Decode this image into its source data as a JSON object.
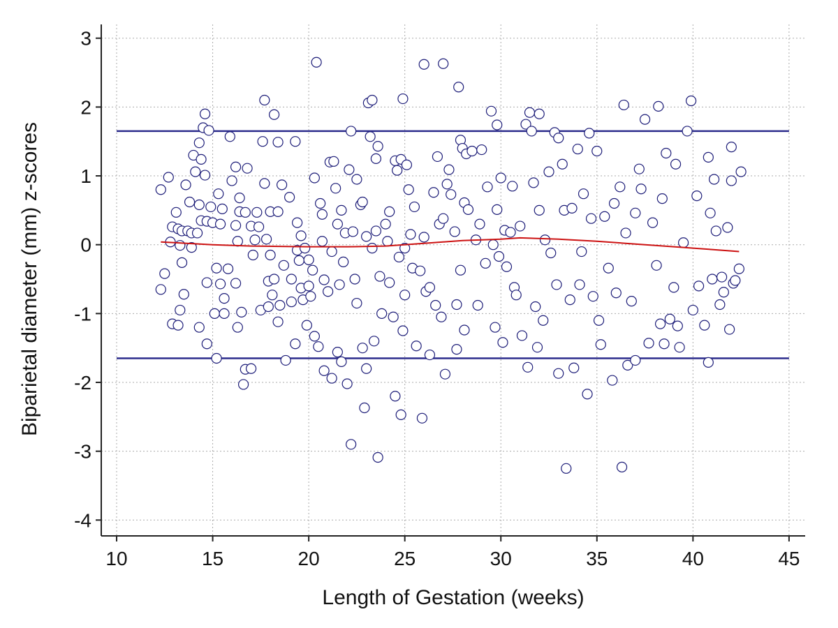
{
  "chart_data": {
    "type": "scatter",
    "xlabel": "Length of Gestation (weeks)",
    "ylabel": "Biparietal diameter (mm) z-scores",
    "xlim": [
      9.2,
      45.84
    ],
    "ylim": [
      -4.23,
      3.2
    ],
    "xticks": [
      10,
      15,
      20,
      25,
      30,
      35,
      40,
      45
    ],
    "yticks": [
      -4,
      -3,
      -2,
      -1,
      0,
      1,
      2,
      3
    ],
    "grid": true,
    "color": "#1c1c78",
    "x": [
      12.3,
      12.3,
      12.5,
      12.7,
      12.8,
      12.9,
      12.9,
      13.1,
      13.2,
      13.2,
      13.3,
      13.3,
      13.4,
      13.4,
      13.5,
      13.6,
      13.7,
      13.8,
      13.9,
      13.9,
      14.0,
      14.1,
      14.2,
      14.3,
      14.3,
      14.3,
      14.4,
      14.4,
      14.5,
      14.6,
      14.6,
      14.7,
      14.7,
      14.7,
      14.8,
      14.9,
      15.0,
      15.1,
      15.2,
      15.2,
      15.3,
      15.4,
      15.4,
      15.5,
      15.6,
      15.6,
      15.8,
      15.9,
      16.0,
      16.2,
      16.2,
      16.2,
      16.3,
      16.3,
      16.4,
      16.4,
      16.5,
      16.6,
      16.7,
      16.7,
      16.8,
      17.0,
      17.0,
      17.1,
      17.2,
      17.3,
      17.4,
      17.5,
      17.6,
      17.7,
      17.7,
      17.8,
      17.9,
      17.9,
      18.0,
      18.0,
      18.1,
      18.2,
      18.2,
      18.4,
      18.4,
      18.4,
      18.5,
      18.6,
      18.7,
      18.8,
      19.0,
      19.1,
      19.1,
      19.3,
      19.3,
      19.4,
      19.4,
      19.5,
      19.6,
      19.6,
      19.7,
      19.8,
      19.9,
      20.0,
      20.0,
      20.1,
      20.2,
      20.3,
      20.3,
      20.4,
      20.5,
      20.6,
      20.7,
      20.7,
      20.8,
      20.8,
      21.0,
      21.1,
      21.2,
      21.2,
      21.3,
      21.4,
      21.5,
      21.5,
      21.6,
      21.7,
      21.7,
      21.8,
      21.9,
      22.0,
      22.1,
      22.2,
      22.2,
      22.3,
      22.4,
      22.5,
      22.5,
      22.7,
      22.8,
      22.8,
      22.9,
      23.0,
      23.0,
      23.1,
      23.2,
      23.3,
      23.3,
      23.4,
      23.5,
      23.5,
      23.6,
      23.6,
      23.7,
      23.8,
      24.0,
      24.1,
      24.2,
      24.2,
      24.4,
      24.5,
      24.5,
      24.6,
      24.7,
      24.8,
      24.8,
      24.9,
      24.9,
      25.0,
      25.0,
      25.1,
      25.2,
      25.3,
      25.4,
      25.5,
      25.6,
      25.8,
      25.9,
      26.0,
      26.0,
      26.1,
      26.3,
      26.3,
      26.5,
      26.6,
      26.7,
      26.8,
      26.9,
      27.0,
      27.0,
      27.1,
      27.2,
      27.3,
      27.4,
      27.6,
      27.7,
      27.7,
      27.8,
      27.9,
      27.9,
      28.0,
      28.1,
      28.1,
      28.2,
      28.3,
      28.5,
      28.7,
      28.8,
      28.9,
      29.0,
      29.2,
      29.3,
      29.5,
      29.6,
      29.7,
      29.8,
      29.8,
      29.9,
      30.0,
      30.1,
      30.2,
      30.3,
      30.5,
      30.6,
      30.7,
      30.8,
      31.0,
      31.1,
      31.3,
      31.4,
      31.5,
      31.6,
      31.7,
      31.8,
      31.9,
      32.0,
      32.0,
      32.2,
      32.3,
      32.5,
      32.6,
      32.8,
      32.9,
      33.0,
      33.0,
      33.2,
      33.3,
      33.4,
      33.6,
      33.7,
      33.8,
      34.0,
      34.1,
      34.2,
      34.3,
      34.5,
      34.6,
      34.7,
      34.8,
      35.0,
      35.1,
      35.2,
      35.4,
      35.6,
      35.8,
      35.9,
      36.0,
      36.2,
      36.3,
      36.4,
      36.5,
      36.6,
      36.8,
      37.0,
      37.0,
      37.2,
      37.3,
      37.5,
      37.7,
      37.9,
      38.1,
      38.2,
      38.3,
      38.4,
      38.5,
      38.6,
      38.8,
      39.0,
      39.1,
      39.2,
      39.3,
      39.5,
      39.7,
      39.9,
      40.0,
      40.2,
      40.3,
      40.6,
      40.8,
      40.8,
      40.9,
      41.0,
      41.1,
      41.2,
      41.4,
      41.5,
      41.6,
      41.8,
      41.9,
      42.0,
      42.0,
      42.1,
      42.2,
      42.4,
      42.5
    ],
    "values": [
      0.8,
      -0.65,
      -0.42,
      0.98,
      0.04,
      0.26,
      -1.15,
      0.47,
      0.23,
      -1.17,
      -0.01,
      -0.95,
      0.2,
      -0.26,
      -0.72,
      0.87,
      0.2,
      0.62,
      0.17,
      -0.04,
      1.3,
      1.06,
      0.17,
      1.48,
      0.58,
      -1.2,
      1.24,
      0.35,
      1.7,
      1.9,
      1.01,
      0.34,
      -0.55,
      -1.44,
      1.66,
      0.55,
      0.32,
      -1.0,
      -1.65,
      -0.34,
      0.74,
      0.3,
      -0.57,
      0.52,
      -1.0,
      -0.78,
      -0.35,
      1.57,
      0.93,
      1.13,
      0.28,
      -0.56,
      -1.2,
      0.05,
      0.68,
      0.48,
      -0.98,
      -2.03,
      0.47,
      -1.81,
      1.11,
      -1.8,
      0.27,
      -0.15,
      0.07,
      0.47,
      0.26,
      -0.95,
      1.5,
      2.1,
      0.89,
      0.08,
      -0.53,
      -0.9,
      0.48,
      -0.15,
      -0.73,
      1.89,
      -0.5,
      1.49,
      0.48,
      -1.12,
      -0.88,
      0.87,
      -0.3,
      -1.68,
      0.69,
      -0.5,
      -0.83,
      -1.44,
      1.5,
      0.32,
      -0.08,
      -0.23,
      -0.63,
      0.13,
      -0.8,
      -0.05,
      -1.17,
      -0.22,
      -0.6,
      -0.75,
      -0.37,
      0.97,
      -1.33,
      2.65,
      -1.48,
      0.6,
      0.44,
      0.05,
      -1.83,
      -0.51,
      -0.68,
      1.2,
      -0.1,
      -1.94,
      1.21,
      0.82,
      0.3,
      -1.56,
      -0.58,
      0.5,
      -1.7,
      -0.25,
      0.17,
      -2.02,
      1.09,
      -2.9,
      1.65,
      0.19,
      -0.5,
      0.95,
      -0.85,
      0.58,
      -1.5,
      0.62,
      -2.37,
      0.12,
      -1.8,
      2.06,
      1.57,
      2.1,
      -0.05,
      -1.4,
      1.25,
      0.2,
      -3.09,
      1.43,
      -0.46,
      -1.0,
      0.3,
      0.05,
      0.48,
      -0.55,
      -1.05,
      1.22,
      -2.2,
      1.08,
      -0.18,
      -2.47,
      1.24,
      2.12,
      -1.25,
      -0.05,
      -0.73,
      1.16,
      0.8,
      0.15,
      -0.34,
      0.55,
      -1.47,
      -0.38,
      -2.52,
      2.62,
      0.11,
      -0.68,
      -1.6,
      -0.62,
      0.76,
      -0.88,
      1.28,
      0.3,
      -1.05,
      2.63,
      0.38,
      -1.88,
      0.88,
      1.09,
      0.73,
      0.19,
      -1.52,
      -0.87,
      2.29,
      1.52,
      -0.37,
      1.4,
      -1.24,
      0.61,
      1.32,
      0.51,
      1.36,
      0.07,
      -0.88,
      0.3,
      1.38,
      -0.27,
      0.84,
      1.94,
      0.0,
      -1.2,
      1.74,
      0.51,
      -0.17,
      0.97,
      -1.42,
      0.21,
      -0.32,
      0.18,
      0.85,
      -0.62,
      -0.73,
      0.27,
      -1.32,
      1.75,
      -1.78,
      1.92,
      1.65,
      0.9,
      -0.9,
      -1.49,
      1.9,
      0.5,
      -1.1,
      0.07,
      1.06,
      -0.12,
      1.63,
      -0.58,
      1.55,
      -1.87,
      1.17,
      0.5,
      -3.25,
      -0.8,
      0.53,
      -1.79,
      1.39,
      -0.58,
      -0.1,
      0.74,
      -2.17,
      1.62,
      0.38,
      -0.75,
      1.36,
      -1.1,
      -1.45,
      0.41,
      -0.34,
      -1.97,
      0.6,
      -0.7,
      0.84,
      -3.23,
      2.03,
      0.17,
      -1.75,
      -0.82,
      0.46,
      -1.68,
      1.1,
      0.81,
      1.82,
      -1.43,
      0.32,
      -0.3,
      2.01,
      -1.15,
      0.67,
      -1.44,
      1.33,
      -1.08,
      -0.62,
      1.17,
      -1.18,
      -1.49,
      0.03,
      1.65,
      2.09,
      -0.95,
      0.71,
      -0.6,
      -1.17,
      1.27,
      -1.71,
      0.46,
      -0.5,
      0.95,
      0.2,
      -0.87,
      -0.47,
      -0.69,
      0.25,
      -1.23,
      1.42,
      0.93,
      -0.56,
      -0.52,
      -0.35,
      1.06
    ],
    "reference_lines": [
      {
        "value": 1.65,
        "color": "#2b2b8c"
      },
      {
        "value": -1.65,
        "color": "#2b2b8c"
      }
    ],
    "trend": {
      "color": "#cc1111",
      "x": [
        12.3,
        15,
        17,
        20,
        22,
        24,
        26,
        28,
        30,
        31,
        33,
        35,
        37,
        39,
        41,
        42.4
      ],
      "values": [
        0.04,
        0.0,
        -0.02,
        -0.03,
        -0.03,
        -0.02,
        0.02,
        0.06,
        0.08,
        0.1,
        0.08,
        0.05,
        0.01,
        -0.03,
        -0.07,
        -0.1
      ]
    }
  }
}
